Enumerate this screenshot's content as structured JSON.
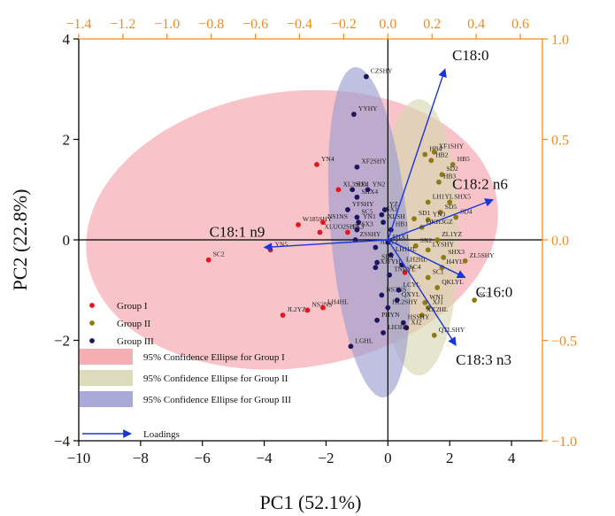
{
  "chart_data": {
    "type": "scatter",
    "title": "",
    "xlabel": "PC1 (52.1%)",
    "ylabel": "PC2 (22.8%)",
    "xlim": [
      -10,
      5
    ],
    "ylim": [
      -4,
      4
    ],
    "x_ticks": [
      -10,
      -8,
      -6,
      -4,
      -2,
      0,
      2,
      4
    ],
    "y_ticks": [
      -4,
      -2,
      0,
      2,
      4
    ],
    "top_axis": {
      "lim": [
        -1.4,
        0.7
      ],
      "ticks": [
        "-1.4",
        "-1.2",
        "-1.0",
        "-0.8",
        "-0.6",
        "-0.4",
        "-0.2",
        "0.0",
        "0.2",
        "0.4",
        "0.6"
      ],
      "color": "#f08c1e"
    },
    "right_axis": {
      "lim": [
        -1.0,
        1.0
      ],
      "ticks": [
        "1.0",
        "0.5",
        "0.0",
        "-0.5",
        "-1.0"
      ],
      "color": "#f08c1e"
    },
    "grid": false,
    "legend_position": "bottom-left",
    "legend": [
      {
        "label": "Group I",
        "kind": "point",
        "color": "#e8141c"
      },
      {
        "label": "Group II",
        "kind": "point",
        "color": "#8c7a14"
      },
      {
        "label": "Group III",
        "kind": "point",
        "color": "#1e1460"
      },
      {
        "label": "95% Confidence Ellipse for Group I",
        "kind": "ellipse",
        "color": "#f4a0a8"
      },
      {
        "label": "95% Confidence Ellipse for Group II",
        "kind": "ellipse",
        "color": "#d6d6b0"
      },
      {
        "label": "95% Confidence Ellipse for Group III",
        "kind": "ellipse",
        "color": "#9a9ad0"
      },
      {
        "label": "Loadings",
        "kind": "arrow",
        "color": "#1a35d8"
      }
    ],
    "ellipses": [
      {
        "group": "Group I",
        "cx": -3.1,
        "cy": 0.2,
        "rx": 6.7,
        "ry": 2.75,
        "angle_deg": 8,
        "color": "#f4a0a8"
      },
      {
        "group": "Group II",
        "cx": 1.0,
        "cy": 0.05,
        "rx": 1.3,
        "ry": 2.75,
        "angle_deg": 0,
        "color": "#d6d6b0"
      },
      {
        "group": "Group III",
        "cx": -0.6,
        "cy": 0.15,
        "rx": 1.25,
        "ry": 3.3,
        "angle_deg": 5,
        "color": "#9a9ad0"
      }
    ],
    "loadings": [
      {
        "label": "C18:0",
        "x": 1.85,
        "y": 3.4
      },
      {
        "label": "C18:2 n6",
        "x": 3.4,
        "y": 0.8
      },
      {
        "label": "C18:1 n9",
        "x": -4.0,
        "y": -0.15
      },
      {
        "label": "C16:0",
        "x": 2.5,
        "y": -0.75
      },
      {
        "label": "C18:3 n3",
        "x": 2.2,
        "y": -2.1
      }
    ],
    "series": [
      {
        "name": "Group I",
        "color": "#e8141c",
        "points": [
          {
            "label": "SC2",
            "x": -5.8,
            "y": -0.4
          },
          {
            "label": "YN5",
            "x": -3.8,
            "y": -0.2
          },
          {
            "label": "YN4",
            "x": -2.3,
            "y": 1.5
          },
          {
            "label": "XL3SHY",
            "x": -1.6,
            "y": 1.0
          },
          {
            "label": "W185SHY",
            "x": -2.9,
            "y": 0.3
          },
          {
            "label": "XLUO2SHY",
            "x": -2.2,
            "y": 0.15
          },
          {
            "label": "NS1NS",
            "x": -2.1,
            "y": 0.35
          },
          {
            "label": "JL2YZ",
            "x": -3.4,
            "y": -1.5
          },
          {
            "label": "NS2NS",
            "x": -2.6,
            "y": -1.4
          },
          {
            "label": "LH4HL",
            "x": -2.1,
            "y": -1.35
          },
          {
            "label": "SX3",
            "x": -1.3,
            "y": 0.15
          },
          {
            "label": "SC4",
            "x": 0.55,
            "y": -0.65
          }
        ]
      },
      {
        "name": "Group II",
        "color": "#8c7a14",
        "points": [
          {
            "label": "HB4",
            "x": 1.2,
            "y": 1.7
          },
          {
            "label": "XF1SHY",
            "x": 1.5,
            "y": 1.75
          },
          {
            "label": "HB2",
            "x": 1.4,
            "y": 1.58
          },
          {
            "label": "HB5",
            "x": 2.1,
            "y": 1.5
          },
          {
            "label": "SD2",
            "x": 1.75,
            "y": 1.3
          },
          {
            "label": "HB3",
            "x": 1.65,
            "y": 1.15
          },
          {
            "label": "LH1YL",
            "x": 1.3,
            "y": 0.75
          },
          {
            "label": "SHX5",
            "x": 2.0,
            "y": 0.75
          },
          {
            "label": "SD5",
            "x": 1.7,
            "y": 0.55
          },
          {
            "label": "SD4",
            "x": 2.2,
            "y": 0.45
          },
          {
            "label": "YN3",
            "x": 1.3,
            "y": 0.4
          },
          {
            "label": "SD1",
            "x": 0.85,
            "y": 0.42
          },
          {
            "label": "QKH3GZ",
            "x": 1.1,
            "y": 0.25
          },
          {
            "label": "ZL1YZ",
            "x": 1.6,
            "y": 0.0
          },
          {
            "label": "SX2",
            "x": 0.9,
            "y": -0.12
          },
          {
            "label": "LYSHY",
            "x": 1.3,
            "y": -0.2
          },
          {
            "label": "SHX3",
            "x": 1.8,
            "y": -0.35
          },
          {
            "label": "ZL5SHY",
            "x": 2.5,
            "y": -0.42
          },
          {
            "label": "H4YL",
            "x": 1.75,
            "y": -0.55
          },
          {
            "label": "SC1",
            "x": 1.3,
            "y": -0.75
          },
          {
            "label": "QKLYL",
            "x": 1.6,
            "y": -0.95
          },
          {
            "label": "SC3",
            "x": 2.8,
            "y": -1.2
          },
          {
            "label": "WN1",
            "x": 1.2,
            "y": -1.25
          },
          {
            "label": "XJ1",
            "x": 1.3,
            "y": -1.35
          },
          {
            "label": "XX2HL",
            "x": 1.1,
            "y": -1.5
          },
          {
            "label": "QTLSHY",
            "x": 1.5,
            "y": -1.9
          }
        ]
      },
      {
        "name": "Group III",
        "color": "#1e1460",
        "points": [
          {
            "label": "CZSHY",
            "x": -0.7,
            "y": 3.25
          },
          {
            "label": "YYHY",
            "x": -1.1,
            "y": 2.5
          },
          {
            "label": "XF2SHY",
            "x": -1.0,
            "y": 1.45
          },
          {
            "label": "SX4",
            "x": -1.15,
            "y": 1.0
          },
          {
            "label": "SHX4",
            "x": -1.0,
            "y": 0.85
          },
          {
            "label": "YN2",
            "x": -0.65,
            "y": 1.0
          },
          {
            "label": "YFSHY",
            "x": -1.3,
            "y": 0.6
          },
          {
            "label": "SC5",
            "x": -1.0,
            "y": 0.45
          },
          {
            "label": "YN1",
            "x": -0.95,
            "y": 0.35
          },
          {
            "label": "SX3b",
            "x": -1.0,
            "y": 0.2
          },
          {
            "label": "ZSSHY",
            "x": -1.05,
            "y": 0.0
          },
          {
            "label": "SX1",
            "x": -0.2,
            "y": 0.5
          },
          {
            "label": "YZ",
            "x": -0.1,
            "y": 0.6
          },
          {
            "label": "XLSH",
            "x": -0.15,
            "y": 0.35
          },
          {
            "label": "HB1",
            "x": 0.1,
            "y": 0.2
          },
          {
            "label": "JL1YZ",
            "x": -0.4,
            "y": -0.15
          },
          {
            "label": "SHX1",
            "x": 0.0,
            "y": -0.05
          },
          {
            "label": "LH1HL",
            "x": 0.1,
            "y": -0.3
          },
          {
            "label": "SD3",
            "x": -0.35,
            "y": -0.45
          },
          {
            "label": "XJFYH",
            "x": -0.4,
            "y": -0.55
          },
          {
            "label": "LH2HL",
            "x": 0.45,
            "y": -0.5
          },
          {
            "label": "TNEYL",
            "x": 0.05,
            "y": -0.7
          },
          {
            "label": "NS3NS",
            "x": -0.2,
            "y": -1.1
          },
          {
            "label": "LCYL",
            "x": 0.35,
            "y": -1.0
          },
          {
            "label": "QXYL",
            "x": 0.3,
            "y": -1.2
          },
          {
            "label": "HL2SHY",
            "x": 0.0,
            "y": -1.35
          },
          {
            "label": "PHYN",
            "x": -0.35,
            "y": -1.6
          },
          {
            "label": "HSSHY",
            "x": 0.5,
            "y": -1.65
          },
          {
            "label": "XJ2",
            "x": 0.6,
            "y": -1.75
          },
          {
            "label": "LH3HL",
            "x": -0.15,
            "y": -1.85
          },
          {
            "label": "LGHL",
            "x": -1.2,
            "y": -2.12
          }
        ]
      }
    ]
  }
}
